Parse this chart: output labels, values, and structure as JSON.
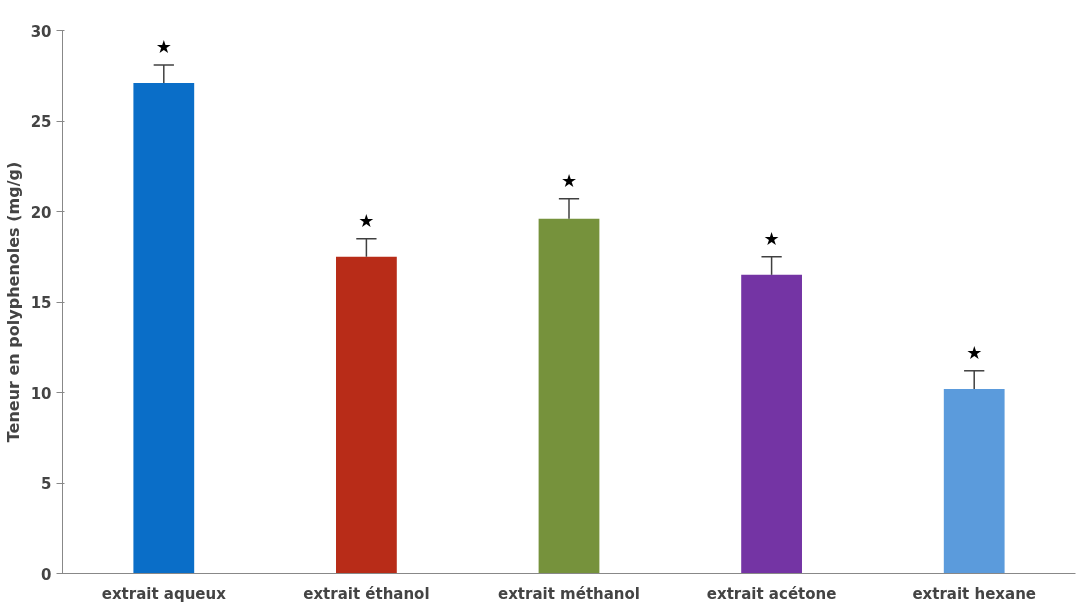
{
  "chart_data": {
    "type": "bar",
    "ylabel": "Teneur en polyphenoles (mg/g)",
    "categories": [
      "extrait aqueux",
      "extrait éthanol",
      "extrait méthanol",
      "extrait acétone",
      "extrait hexane"
    ],
    "values": [
      27.1,
      17.5,
      19.6,
      16.5,
      10.2
    ],
    "colors": [
      "#0a6ec8",
      "#b82c18",
      "#76923c",
      "#7434a4",
      "#5b9bdc"
    ],
    "errors": [
      [
        27.1,
        28.1
      ],
      [
        17.5,
        18.5
      ],
      [
        19.6,
        20.7
      ],
      [
        16.5,
        17.5
      ],
      [
        10.2,
        11.2
      ]
    ],
    "annotations": [
      "★",
      "★",
      "★",
      "★",
      "★"
    ],
    "ylim": [
      0,
      30
    ],
    "yticks": [
      0,
      5,
      10,
      15,
      20,
      25,
      30
    ],
    "grid": false
  }
}
